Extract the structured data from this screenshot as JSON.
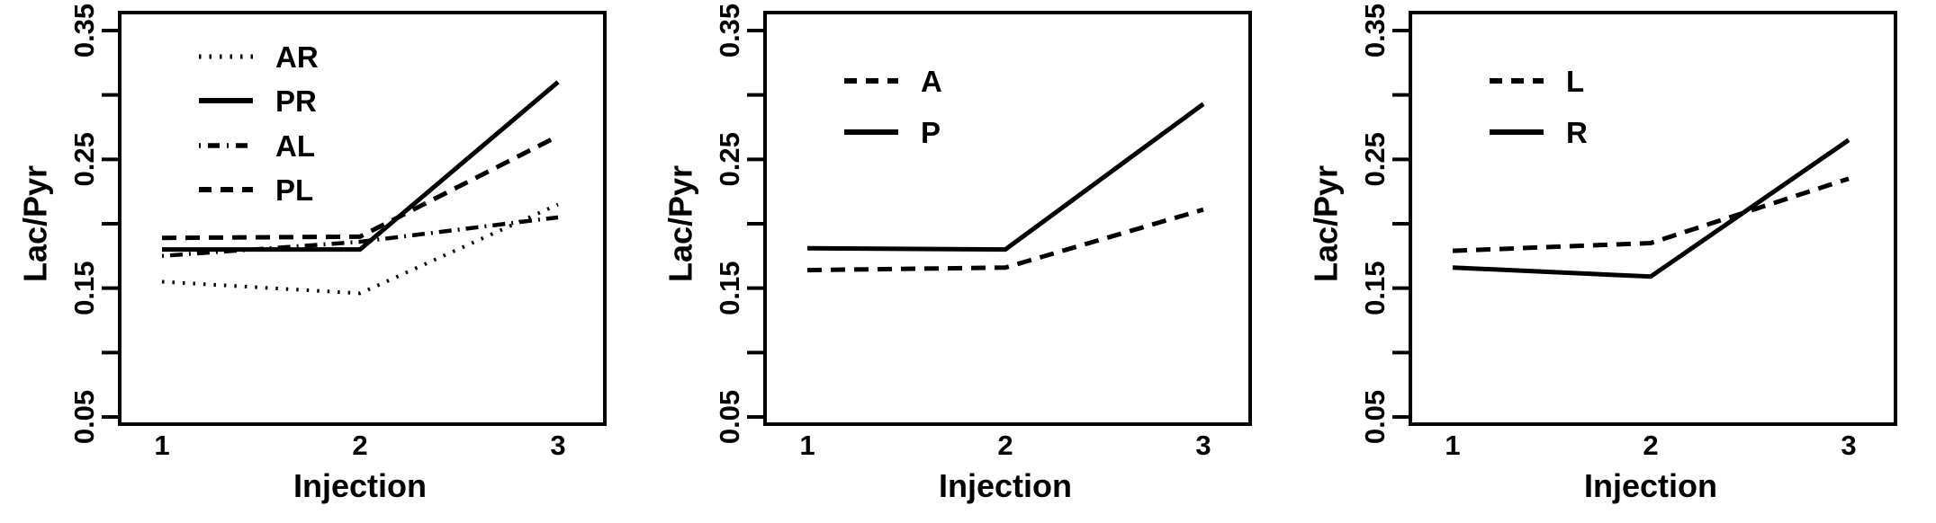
{
  "figure": {
    "ink_color": "#000000",
    "background_color": "#ffffff",
    "panel_count": 3
  },
  "chart_data": [
    {
      "type": "line",
      "title": "",
      "xlabel": "Injection",
      "ylabel": "Lac/Pyr",
      "x": [
        1,
        2,
        3
      ],
      "x_tick_labels": [
        "1",
        "2",
        "3"
      ],
      "ylim": [
        0.044,
        0.365
      ],
      "yticks": [
        0.05,
        0.1,
        0.15,
        0.2,
        0.25,
        0.3,
        0.35
      ],
      "ytick_labels": [
        "0.05",
        "0.15",
        "0.25",
        "0.35"
      ],
      "grid": false,
      "legend_position": "top-left-inside",
      "series": [
        {
          "name": "AR",
          "style": "dotted",
          "values": [
            0.155,
            0.146,
            0.215
          ]
        },
        {
          "name": "PR",
          "style": "solid",
          "values": [
            0.18,
            0.18,
            0.31
          ]
        },
        {
          "name": "AL",
          "style": "dashdot",
          "values": [
            0.175,
            0.186,
            0.205
          ]
        },
        {
          "name": "PL",
          "style": "dashed",
          "values": [
            0.189,
            0.19,
            0.268
          ]
        }
      ]
    },
    {
      "type": "line",
      "title": "",
      "xlabel": "Injection",
      "ylabel": "Lac/Pyr",
      "x": [
        1,
        2,
        3
      ],
      "x_tick_labels": [
        "1",
        "2",
        "3"
      ],
      "ylim": [
        0.044,
        0.365
      ],
      "yticks": [
        0.05,
        0.1,
        0.15,
        0.2,
        0.25,
        0.3,
        0.35
      ],
      "ytick_labels": [
        "0.05",
        "0.15",
        "0.25",
        "0.35"
      ],
      "grid": false,
      "legend_position": "top-left-inside",
      "series": [
        {
          "name": "A",
          "style": "dashed",
          "values": [
            0.164,
            0.166,
            0.211
          ]
        },
        {
          "name": "P",
          "style": "solid",
          "values": [
            0.181,
            0.18,
            0.293
          ]
        }
      ]
    },
    {
      "type": "line",
      "title": "",
      "xlabel": "Injection",
      "ylabel": "Lac/Pyr",
      "x": [
        1,
        2,
        3
      ],
      "x_tick_labels": [
        "1",
        "2",
        "3"
      ],
      "ylim": [
        0.044,
        0.365
      ],
      "yticks": [
        0.05,
        0.1,
        0.15,
        0.2,
        0.25,
        0.3,
        0.35
      ],
      "ytick_labels": [
        "0.05",
        "0.15",
        "0.25",
        "0.35"
      ],
      "grid": false,
      "legend_position": "top-left-inside",
      "series": [
        {
          "name": "L",
          "style": "dashed",
          "values": [
            0.179,
            0.185,
            0.235
          ]
        },
        {
          "name": "R",
          "style": "solid",
          "values": [
            0.166,
            0.159,
            0.265
          ]
        }
      ]
    }
  ]
}
